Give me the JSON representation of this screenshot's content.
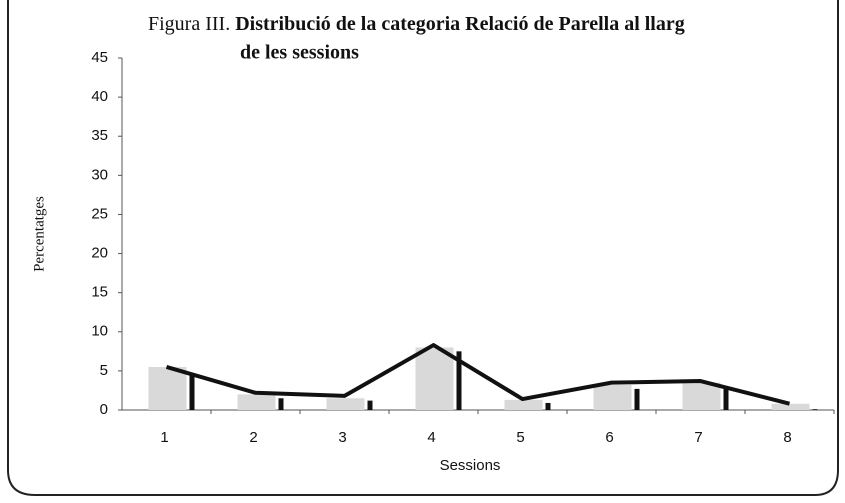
{
  "chart_data": {
    "type": "bar-line",
    "title_prefix": "Figura III.",
    "title_lines": [
      "Distribució de la categoria Relació de Parella al llarg",
      "de les sessions"
    ],
    "x_label": "Sessions",
    "y_label": "Percentatges",
    "categories": [
      "1",
      "2",
      "3",
      "4",
      "5",
      "6",
      "7",
      "8"
    ],
    "series": [
      {
        "type": "bar",
        "color": "#d9d9d9",
        "values": [
          5.5,
          2,
          1.5,
          8,
          1.3,
          3.2,
          3.5,
          0.8
        ]
      },
      {
        "type": "bar",
        "color": "#111111",
        "values": [
          4.5,
          1.5,
          1.2,
          7.5,
          0.9,
          2.7,
          2.7,
          0.1
        ]
      },
      {
        "type": "line",
        "color": "#111111",
        "values": [
          5.5,
          2.2,
          1.8,
          8.3,
          1.4,
          3.5,
          3.7,
          0.8
        ]
      }
    ],
    "ylim": [
      0,
      45
    ],
    "yticks": [
      0,
      5,
      10,
      15,
      20,
      25,
      30,
      35,
      40,
      45
    ],
    "grid": false
  }
}
